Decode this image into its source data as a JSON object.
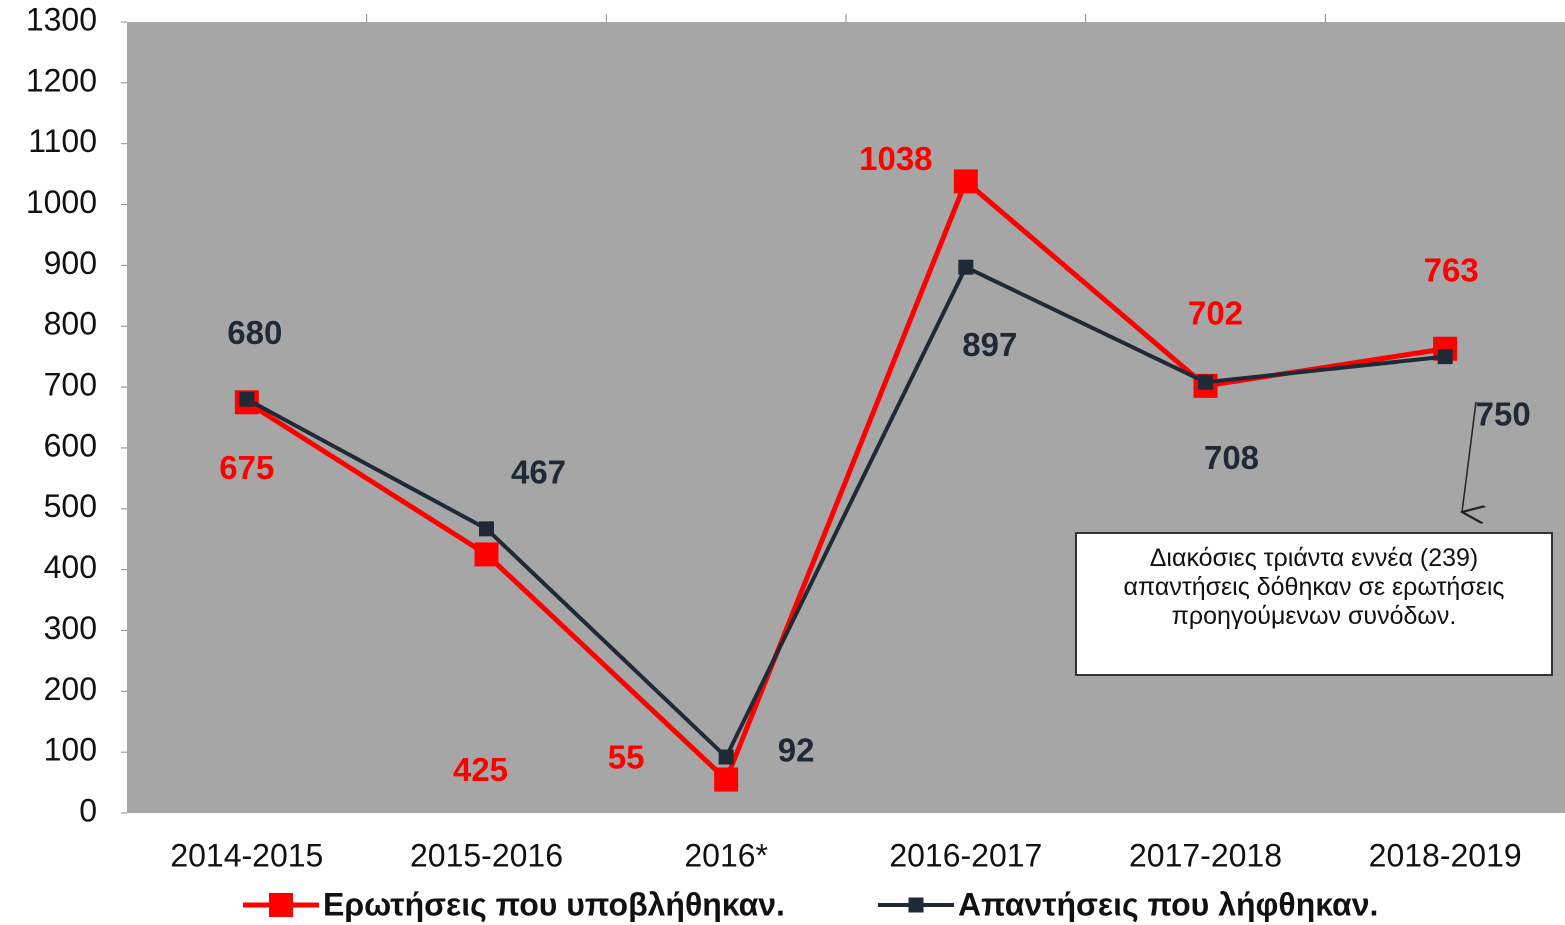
{
  "chart_data": {
    "type": "line",
    "categories": [
      "2014-2015",
      "2015-2016",
      "2016*",
      "2016-2017",
      "2017-2018",
      "2018-2019"
    ],
    "series": [
      {
        "name": "Ερωτήσεις που υποβλήθηκαν.",
        "color": "#ff0000",
        "values": [
          675,
          425,
          55,
          1038,
          702,
          763
        ]
      },
      {
        "name": "Απαντήσεις που λήφθηκαν.",
        "color": "#1f2a36",
        "values": [
          680,
          467,
          92,
          897,
          708,
          750
        ]
      }
    ],
    "ylim": [
      0,
      1300
    ],
    "yticks": [
      0,
      100,
      200,
      300,
      400,
      500,
      600,
      700,
      800,
      900,
      1000,
      1100,
      1200,
      1300
    ],
    "annotation": "Διακόσιες τριάντα εννέα (239) απαντήσεις δόθηκαν σε ερωτήσεις προηγούμενων συνόδων.",
    "background": "#a6a6a6",
    "legend": "bottom"
  }
}
